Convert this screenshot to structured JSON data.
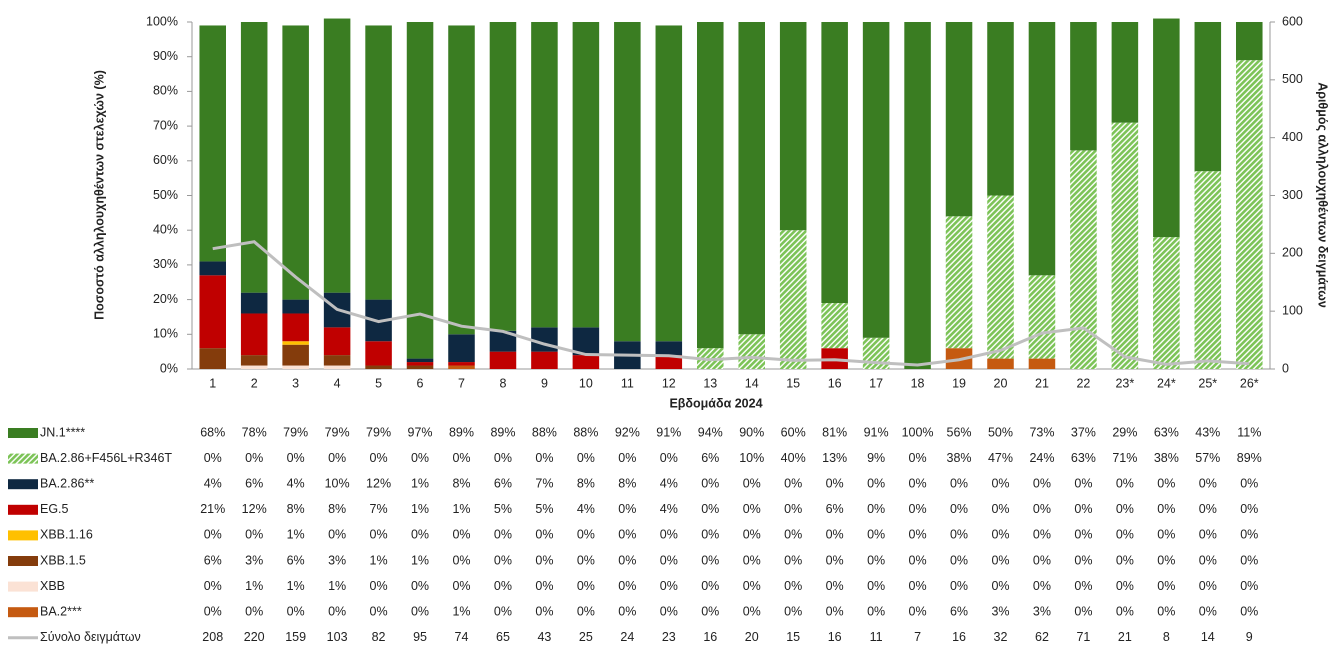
{
  "chart_data": {
    "type": "bar",
    "stacked": true,
    "x_label": "Εβδομάδα 2024",
    "y_label": "Ποσοστό αλληλουχηθέντων στελεχών (%)",
    "y2_label": "Αριθμός αλληλουχηθέντων δειγμάτων",
    "categories": [
      "1",
      "2",
      "3",
      "4",
      "5",
      "6",
      "7",
      "8",
      "9",
      "10",
      "11",
      "12",
      "13",
      "14",
      "15",
      "16",
      "17",
      "18",
      "19",
      "20",
      "21",
      "22",
      "23*",
      "24*",
      "25*",
      "26*"
    ],
    "ylim": [
      0,
      100
    ],
    "yticks": [
      {
        "value": 0,
        "label": "0%"
      },
      {
        "value": 10,
        "label": "10%"
      },
      {
        "value": 20,
        "label": "20%"
      },
      {
        "value": 30,
        "label": "30%"
      },
      {
        "value": 40,
        "label": "40%"
      },
      {
        "value": 50,
        "label": "50%"
      },
      {
        "value": 60,
        "label": "60%"
      },
      {
        "value": 70,
        "label": "70%"
      },
      {
        "value": 80,
        "label": "80%"
      },
      {
        "value": 90,
        "label": "90%"
      },
      {
        "value": 100,
        "label": "100%"
      }
    ],
    "y2lim": [
      0,
      600
    ],
    "y2ticks": [
      0,
      100,
      200,
      300,
      400,
      500,
      600
    ],
    "series": [
      {
        "name": "JN.1****",
        "color": "#3a7d22",
        "values": [
          68,
          78,
          79,
          79,
          79,
          97,
          89,
          89,
          88,
          88,
          92,
          91,
          94,
          90,
          60,
          81,
          91,
          100,
          56,
          50,
          73,
          37,
          29,
          63,
          43,
          11
        ],
        "value_labels": [
          "68%",
          "78%",
          "79%",
          "79%",
          "79%",
          "97%",
          "89%",
          "89%",
          "88%",
          "88%",
          "92%",
          "91%",
          "94%",
          "90%",
          "60%",
          "81%",
          "91%",
          "100%",
          "56%",
          "50%",
          "73%",
          "37%",
          "29%",
          "63%",
          "43%",
          "11%"
        ]
      },
      {
        "name": "BA.2.86+F456L+R346T",
        "color": "#7cc357",
        "pattern": "hatch",
        "values": [
          0,
          0,
          0,
          0,
          0,
          0,
          0,
          0,
          0,
          0,
          0,
          0,
          6,
          10,
          40,
          13,
          9,
          0,
          38,
          47,
          24,
          63,
          71,
          38,
          57,
          89
        ],
        "value_labels": [
          "0%",
          "0%",
          "0%",
          "0%",
          "0%",
          "0%",
          "0%",
          "0%",
          "0%",
          "0%",
          "0%",
          "0%",
          "6%",
          "10%",
          "40%",
          "13%",
          "9%",
          "0%",
          "38%",
          "47%",
          "24%",
          "63%",
          "71%",
          "38%",
          "57%",
          "89%"
        ]
      },
      {
        "name": "BA.2.86**",
        "color": "#0e2841",
        "values": [
          4,
          6,
          4,
          10,
          12,
          1,
          8,
          6,
          7,
          8,
          8,
          4,
          0,
          0,
          0,
          0,
          0,
          0,
          0,
          0,
          0,
          0,
          0,
          0,
          0,
          0
        ],
        "value_labels": [
          "4%",
          "6%",
          "4%",
          "10%",
          "12%",
          "1%",
          "8%",
          "6%",
          "7%",
          "8%",
          "8%",
          "4%",
          "0%",
          "0%",
          "0%",
          "0%",
          "0%",
          "0%",
          "0%",
          "0%",
          "0%",
          "0%",
          "0%",
          "0%",
          "0%",
          "0%"
        ]
      },
      {
        "name": "EG.5",
        "color": "#c00000",
        "values": [
          21,
          12,
          8,
          8,
          7,
          1,
          1,
          5,
          5,
          4,
          0,
          4,
          0,
          0,
          0,
          6,
          0,
          0,
          0,
          0,
          0,
          0,
          0,
          0,
          0,
          0
        ],
        "value_labels": [
          "21%",
          "12%",
          "8%",
          "8%",
          "7%",
          "1%",
          "1%",
          "5%",
          "5%",
          "4%",
          "0%",
          "4%",
          "0%",
          "0%",
          "0%",
          "6%",
          "0%",
          "0%",
          "0%",
          "0%",
          "0%",
          "0%",
          "0%",
          "0%",
          "0%",
          "0%"
        ]
      },
      {
        "name": "XBB.1.16",
        "color": "#ffc000",
        "values": [
          0,
          0,
          1,
          0,
          0,
          0,
          0,
          0,
          0,
          0,
          0,
          0,
          0,
          0,
          0,
          0,
          0,
          0,
          0,
          0,
          0,
          0,
          0,
          0,
          0,
          0
        ],
        "value_labels": [
          "0%",
          "0%",
          "1%",
          "0%",
          "0%",
          "0%",
          "0%",
          "0%",
          "0%",
          "0%",
          "0%",
          "0%",
          "0%",
          "0%",
          "0%",
          "0%",
          "0%",
          "0%",
          "0%",
          "0%",
          "0%",
          "0%",
          "0%",
          "0%",
          "0%",
          "0%"
        ]
      },
      {
        "name": "XBB.1.5",
        "color": "#843c0c",
        "values": [
          6,
          3,
          6,
          3,
          1,
          1,
          0,
          0,
          0,
          0,
          0,
          0,
          0,
          0,
          0,
          0,
          0,
          0,
          0,
          0,
          0,
          0,
          0,
          0,
          0,
          0
        ],
        "value_labels": [
          "6%",
          "3%",
          "6%",
          "3%",
          "1%",
          "1%",
          "0%",
          "0%",
          "0%",
          "0%",
          "0%",
          "0%",
          "0%",
          "0%",
          "0%",
          "0%",
          "0%",
          "0%",
          "0%",
          "0%",
          "0%",
          "0%",
          "0%",
          "0%",
          "0%",
          "0%"
        ]
      },
      {
        "name": "XBB",
        "color": "#fbe2d5",
        "values": [
          0,
          1,
          1,
          1,
          0,
          0,
          0,
          0,
          0,
          0,
          0,
          0,
          0,
          0,
          0,
          0,
          0,
          0,
          0,
          0,
          0,
          0,
          0,
          0,
          0,
          0
        ],
        "value_labels": [
          "0%",
          "1%",
          "1%",
          "1%",
          "0%",
          "0%",
          "0%",
          "0%",
          "0%",
          "0%",
          "0%",
          "0%",
          "0%",
          "0%",
          "0%",
          "0%",
          "0%",
          "0%",
          "0%",
          "0%",
          "0%",
          "0%",
          "0%",
          "0%",
          "0%",
          "0%"
        ]
      },
      {
        "name": "BA.2***",
        "color": "#c55a11",
        "values": [
          0,
          0,
          0,
          0,
          0,
          0,
          1,
          0,
          0,
          0,
          0,
          0,
          0,
          0,
          0,
          0,
          0,
          0,
          6,
          3,
          3,
          0,
          0,
          0,
          0,
          0
        ],
        "value_labels": [
          "0%",
          "0%",
          "0%",
          "0%",
          "0%",
          "0%",
          "1%",
          "0%",
          "0%",
          "0%",
          "0%",
          "0%",
          "0%",
          "0%",
          "0%",
          "0%",
          "0%",
          "0%",
          "6%",
          "3%",
          "3%",
          "0%",
          "0%",
          "0%",
          "0%",
          "0%"
        ]
      },
      {
        "name": "Σύνολο δειγμάτων",
        "type": "line",
        "axis": "y2",
        "color": "#bfbfbf",
        "values": [
          208,
          220,
          159,
          103,
          82,
          95,
          74,
          65,
          43,
          25,
          24,
          23,
          16,
          20,
          15,
          16,
          11,
          7,
          16,
          32,
          62,
          71,
          21,
          8,
          14,
          9
        ]
      }
    ]
  }
}
